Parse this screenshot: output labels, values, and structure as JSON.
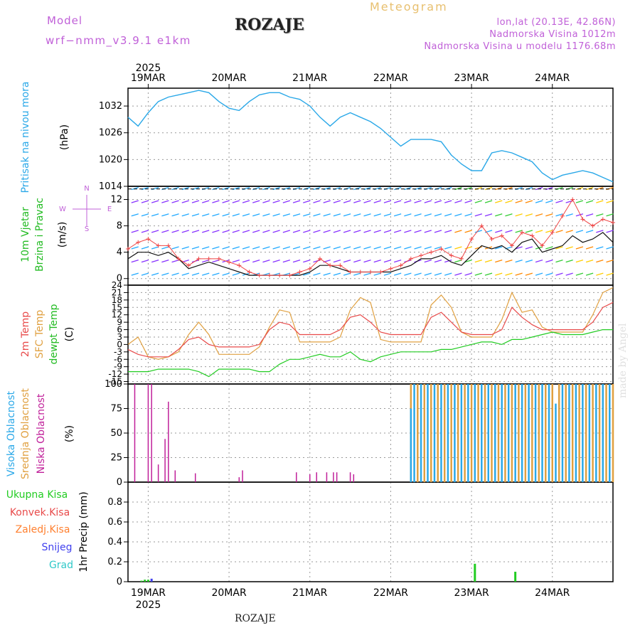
{
  "header": {
    "model_label": "Model",
    "model_name": "wrf−nmm_v3.9.1  e1km",
    "station": "ROZAJE",
    "title": "Meteogram",
    "coords": "lon,lat (20.13E, 42.86N)",
    "elevation": "Nadmorska Visina 1012m",
    "model_elevation": "Nadmorska Visina u modelu 1176.68m",
    "year_top": "2025",
    "year_bottom": "2025",
    "station_bottom": "ROZAJE",
    "credit": "made by Angel"
  },
  "colors": {
    "pressure": "#2aa8e8",
    "temp2m": "#e84a4a",
    "sfc": "#e0a040",
    "dewpt": "#22cc22",
    "wind": "#111111",
    "gust": "#ee4444",
    "high_cloud": "#2aa8e8",
    "mid_cloud": "#e0a040",
    "low_cloud": "#c0209a",
    "total_precip": "#22cc22",
    "conv_precip": "#e84a4a",
    "freezing": "#ff8030",
    "snow": "#4040ee",
    "hail": "#30c8c8"
  },
  "chart_data": [
    {
      "type": "line",
      "panel": "pressure",
      "labels": [
        "Pritisak na nivou mora",
        "(hPa)"
      ],
      "x_ticks": [
        "19MAR",
        "20MAR",
        "21MAR",
        "22MAR",
        "23MAR",
        "24MAR"
      ],
      "x_range_hours": [
        0,
        144
      ],
      "ylim": [
        1014,
        1036
      ],
      "yticks": [
        1014,
        1020,
        1026,
        1032
      ],
      "grid": true,
      "series": [
        {
          "key": "pressure",
          "x": [
            0,
            3,
            6,
            9,
            12,
            15,
            18,
            21,
            24,
            27,
            30,
            33,
            36,
            39,
            42,
            45,
            48,
            51,
            54,
            57,
            60,
            63,
            66,
            69,
            72,
            75,
            78,
            81,
            84,
            87,
            90,
            93,
            96,
            99,
            102,
            105,
            108,
            111,
            114,
            117,
            120,
            123,
            126,
            129,
            132,
            135,
            138,
            141,
            144
          ],
          "values": [
            1029.5,
            1027.5,
            1030.5,
            1033,
            1034,
            1034.5,
            1035,
            1035.5,
            1035,
            1033,
            1031.5,
            1031,
            1033,
            1034.5,
            1035,
            1035,
            1034,
            1033.5,
            1032,
            1029.5,
            1027.5,
            1029.5,
            1030.5,
            1029.5,
            1028.5,
            1027,
            1025,
            1023,
            1024.5,
            1024.5,
            1024.5,
            1024,
            1021,
            1019,
            1017.5,
            1017.5,
            1021.5,
            1022,
            1021.5,
            1020.5,
            1019.5,
            1017,
            1015.5,
            1016.5,
            1017,
            1017.5,
            1017,
            1016,
            1015
          ]
        }
      ]
    },
    {
      "type": "line",
      "panel": "wind",
      "labels": [
        "10m Vjetar",
        "Brzina i Pravac",
        "(m/s)"
      ],
      "direction_legend": [
        "N",
        "W",
        "E",
        "S"
      ],
      "ylim": [
        -1,
        14
      ],
      "yticks": [
        0,
        4,
        8,
        12
      ],
      "grid": true,
      "series": [
        {
          "key": "wind",
          "x": [
            0,
            3,
            6,
            9,
            12,
            15,
            18,
            21,
            24,
            27,
            30,
            33,
            36,
            39,
            42,
            45,
            48,
            51,
            54,
            57,
            60,
            63,
            66,
            69,
            72,
            75,
            78,
            81,
            84,
            87,
            90,
            93,
            96,
            99,
            102,
            105,
            108,
            111,
            114,
            117,
            120,
            123,
            126,
            129,
            132,
            135,
            138,
            141,
            144
          ],
          "values": [
            3,
            4,
            4,
            3.5,
            4,
            3,
            1.5,
            2,
            2.5,
            2,
            1.5,
            1,
            0.5,
            0.5,
            0.5,
            0.5,
            0.5,
            0.5,
            1,
            2,
            2,
            1.5,
            1,
            1,
            1,
            1,
            1,
            1.5,
            2,
            3,
            3,
            3.5,
            2.5,
            2,
            3.5,
            5,
            4.5,
            5,
            4,
            5.5,
            6,
            4,
            4.5,
            5,
            6.5,
            5.5,
            6,
            7,
            5.5
          ]
        },
        {
          "key": "gust",
          "x": [
            0,
            3,
            6,
            9,
            12,
            15,
            18,
            21,
            24,
            27,
            30,
            33,
            36,
            39,
            42,
            45,
            48,
            51,
            54,
            57,
            60,
            63,
            66,
            69,
            72,
            75,
            78,
            81,
            84,
            87,
            90,
            93,
            96,
            99,
            102,
            105,
            108,
            111,
            114,
            117,
            120,
            123,
            126,
            129,
            132,
            135,
            138,
            141,
            144
          ],
          "values": [
            4.5,
            5.5,
            6,
            5,
            5,
            3,
            2,
            3,
            3,
            3,
            2.5,
            2,
            1,
            0.5,
            0.5,
            0.5,
            0.5,
            1,
            1.5,
            3,
            2,
            2,
            1,
            1,
            1,
            1,
            1.5,
            2,
            3,
            3.5,
            4,
            4.5,
            3.5,
            3,
            6,
            8,
            6,
            6.5,
            5,
            7,
            6.5,
            5,
            7,
            9.5,
            12,
            9,
            8,
            9,
            8.5
          ]
        }
      ]
    },
    {
      "type": "line",
      "panel": "temperature",
      "labels": [
        "2m Temp",
        "SFC Temp",
        "dewpt Temp",
        "(C)"
      ],
      "ylim": [
        -16,
        24
      ],
      "yticks": [
        -15,
        -12,
        -9,
        -6,
        -3,
        0,
        3,
        6,
        9,
        12,
        15,
        18,
        21,
        24
      ],
      "grid": true,
      "series": [
        {
          "key": "temp2m",
          "x": [
            0,
            3,
            6,
            9,
            12,
            15,
            18,
            21,
            24,
            27,
            30,
            33,
            36,
            39,
            42,
            45,
            48,
            51,
            54,
            57,
            60,
            63,
            66,
            69,
            72,
            75,
            78,
            81,
            84,
            87,
            90,
            93,
            96,
            99,
            102,
            105,
            108,
            111,
            114,
            117,
            120,
            123,
            126,
            129,
            132,
            135,
            138,
            141,
            144
          ],
          "values": [
            -2,
            -4,
            -5,
            -5,
            -5,
            -2,
            2,
            3,
            0,
            -1,
            -1,
            -1,
            -1,
            0,
            6,
            9,
            8,
            4,
            4,
            4,
            4,
            6,
            11,
            12,
            9,
            5,
            4,
            4,
            4,
            4,
            11,
            13,
            9,
            5,
            4,
            4,
            4,
            6,
            15,
            11,
            8,
            6,
            6,
            6,
            6,
            6,
            9,
            15,
            17
          ]
        },
        {
          "key": "sfc",
          "x": [
            0,
            3,
            6,
            9,
            12,
            15,
            18,
            21,
            24,
            27,
            30,
            33,
            36,
            39,
            42,
            45,
            48,
            51,
            54,
            57,
            60,
            63,
            66,
            69,
            72,
            75,
            78,
            81,
            84,
            87,
            90,
            93,
            96,
            99,
            102,
            105,
            108,
            111,
            114,
            117,
            120,
            123,
            126,
            129,
            132,
            135,
            138,
            141,
            144
          ],
          "values": [
            0,
            3,
            -5,
            -6,
            -5,
            -3,
            4,
            9,
            4,
            -4,
            -4,
            -4,
            -4,
            -1,
            7,
            14,
            13,
            1,
            1,
            1,
            1,
            3,
            14,
            19,
            17,
            2,
            1,
            1,
            1,
            1,
            16,
            20,
            15,
            5,
            3,
            3,
            3,
            10,
            21,
            13,
            14,
            7,
            5,
            5,
            5,
            5,
            12,
            21,
            23
          ]
        },
        {
          "key": "dewpt",
          "x": [
            0,
            3,
            6,
            9,
            12,
            15,
            18,
            21,
            24,
            27,
            30,
            33,
            36,
            39,
            42,
            45,
            48,
            51,
            54,
            57,
            60,
            63,
            66,
            69,
            72,
            75,
            78,
            81,
            84,
            87,
            90,
            93,
            96,
            99,
            102,
            105,
            108,
            111,
            114,
            117,
            120,
            123,
            126,
            129,
            132,
            135,
            138,
            141,
            144
          ],
          "values": [
            -11,
            -11,
            -11,
            -10,
            -10,
            -10,
            -10,
            -11,
            -13,
            -10,
            -10,
            -10,
            -10,
            -11,
            -11,
            -8,
            -6,
            -6,
            -5,
            -4,
            -5,
            -5,
            -3,
            -6,
            -7,
            -5,
            -4,
            -3,
            -3,
            -3,
            -3,
            -2,
            -2,
            -1,
            0,
            1,
            1,
            0,
            2,
            2,
            3,
            4,
            5,
            4,
            4,
            4,
            5,
            6,
            6
          ]
        }
      ]
    },
    {
      "type": "bar",
      "panel": "clouds",
      "labels": [
        "Visoka Oblacnost",
        "Srednja Oblacnost",
        "Niska Oblacnost",
        "(%)"
      ],
      "ylim": [
        0,
        100
      ],
      "yticks": [
        0,
        25,
        50,
        75,
        100
      ],
      "grid": true,
      "series": [
        {
          "key": "low_cloud",
          "x": [
            2,
            6,
            7,
            9,
            11,
            12,
            14,
            20,
            33,
            34,
            50,
            54,
            56,
            59,
            61,
            62,
            66,
            67
          ],
          "values": [
            100,
            100,
            100,
            18,
            44,
            82,
            12,
            9,
            5,
            12,
            10,
            8,
            10,
            10,
            10,
            10,
            10,
            8
          ]
        },
        {
          "key": "mid_cloud",
          "x": [
            84,
            86,
            88,
            90,
            92,
            94,
            96,
            98,
            100,
            102,
            104,
            106,
            108,
            110,
            112,
            114,
            116,
            118,
            120,
            122,
            124,
            126,
            128,
            130,
            132,
            134,
            136,
            138,
            140,
            142,
            144
          ],
          "values": [
            100,
            100,
            100,
            100,
            100,
            100,
            100,
            100,
            100,
            100,
            100,
            100,
            100,
            100,
            100,
            100,
            100,
            100,
            100,
            100,
            100,
            100,
            100,
            100,
            100,
            100,
            100,
            100,
            100,
            100,
            100
          ]
        },
        {
          "key": "high_cloud",
          "x": [
            84,
            85,
            87,
            89,
            91,
            93,
            95,
            97,
            99,
            101,
            103,
            105,
            107,
            109,
            111,
            113,
            115,
            117,
            119,
            121,
            123,
            125,
            127,
            129,
            131,
            133,
            135,
            137,
            139,
            141,
            143
          ],
          "values": [
            75,
            100,
            100,
            100,
            100,
            100,
            100,
            100,
            100,
            100,
            100,
            100,
            100,
            100,
            100,
            100,
            100,
            100,
            100,
            100,
            100,
            100,
            80,
            100,
            100,
            100,
            100,
            100,
            100,
            100,
            100
          ]
        }
      ]
    },
    {
      "type": "bar",
      "panel": "precip",
      "labels": [
        "Ukupna Kisa",
        "Konvek.Kisa",
        "Zaledj.Kisa",
        "Snijeg",
        "Grad",
        "1hr Precip (mm)"
      ],
      "ylim": [
        0,
        1
      ],
      "yticks": [
        0,
        0.2,
        0.4,
        0.6,
        0.8
      ],
      "grid": true,
      "series": [
        {
          "key": "total_precip",
          "x": [
            4,
            5,
            6,
            103,
            115
          ],
          "values": [
            0.01,
            0.02,
            0.02,
            0.18,
            0.1
          ]
        },
        {
          "key": "snow",
          "x": [
            7
          ],
          "values": [
            0.03
          ]
        }
      ]
    }
  ]
}
